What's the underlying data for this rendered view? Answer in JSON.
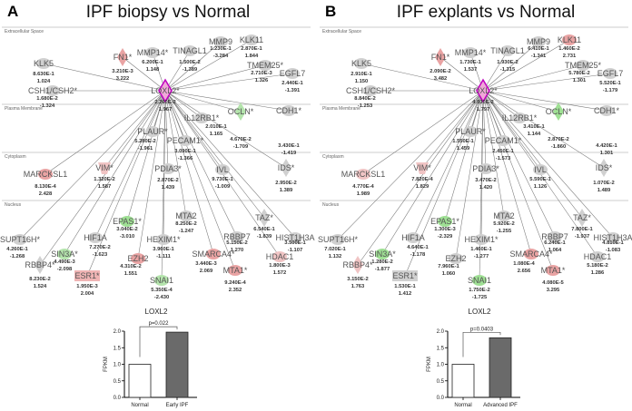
{
  "panels": [
    {
      "letter": "A",
      "title": "IPF biopsy vs Normal",
      "regions": [
        "Extracellular Space",
        "Plasma Membrane",
        "Cytoplasm",
        "Nucleus"
      ],
      "hub": {
        "label": "LOXL2*",
        "p": "2.260E-2",
        "fc": "1.967"
      },
      "nodes": [
        {
          "id": "FN1",
          "label": "FN1*",
          "p": "3.210E-3",
          "fc": "3.222",
          "color": "#e9a3a3",
          "shape": "diamond"
        },
        {
          "id": "MMP14",
          "label": "MMP14*",
          "p": "6.200E-1",
          "fc": "1.148",
          "color": "#d0d0d0",
          "shape": "ellipse"
        },
        {
          "id": "TINAGL1",
          "label": "TINAGL1",
          "p": "1.500E-2",
          "fc": "-1.389",
          "color": "#d0d0d0",
          "shape": "ellipse"
        },
        {
          "id": "MMP9",
          "label": "MMP9",
          "p": "1.230E-1",
          "fc": "-3.284",
          "color": "#d0d0d0",
          "shape": "ellipse"
        },
        {
          "id": "KLK11",
          "label": "KLK11",
          "p": "2.870E-1",
          "fc": "1.844",
          "color": "#d0d0d0",
          "shape": "ellipse"
        },
        {
          "id": "TMEM25",
          "label": "TMEM25*",
          "p": "2.710E-3",
          "fc": "1.326",
          "color": "#d0d0d0",
          "shape": "ellipse"
        },
        {
          "id": "EGFL7",
          "label": "EGFL7",
          "p": "2.440E-1",
          "fc": "-1.391",
          "color": "#d0d0d0",
          "shape": "ellipse"
        },
        {
          "id": "KLK5",
          "label": "KLK5",
          "p": "8.630E-1",
          "fc": "1.024",
          "color": "#d0d0d0",
          "shape": "ellipse"
        },
        {
          "id": "CSH",
          "label": "CSH1/CSH2*",
          "p": "1.680E-2",
          "fc": "-1.324",
          "color": "#d0d0d0",
          "shape": "ellipse"
        },
        {
          "id": "PLAUR",
          "label": "PLAUR*",
          "p": "5.280E-2",
          "fc": "-1.961",
          "color": "#d0d0d0",
          "shape": "ellipse"
        },
        {
          "id": "PECAM",
          "label": "PECAM1*",
          "p": "3.090E-1",
          "fc": "-1.366",
          "color": "#d0d0d0",
          "shape": "ellipse"
        },
        {
          "id": "IL12RB1",
          "label": "IL12RB1*",
          "p": "2.010E-1",
          "fc": "1.165",
          "color": "#d0d0d0",
          "shape": "ellipse"
        },
        {
          "id": "OCLN",
          "label": "OCLN*",
          "p": "4.670E-2",
          "fc": "-1.709",
          "color": "#b4e4ac",
          "shape": "diamond"
        },
        {
          "id": "CDH1",
          "label": "CDH1*",
          "p": "3.430E-1",
          "fc": "-1.419",
          "color": "#d0d0d0",
          "shape": "ellipse"
        },
        {
          "id": "MARCKSL1",
          "label": "MARCKSL1",
          "p": "8.130E-4",
          "fc": "2.428",
          "color": "#e9a3a3",
          "shape": "ellipse"
        },
        {
          "id": "VIM",
          "label": "VIM*",
          "p": "1.320E-2",
          "fc": "1.587",
          "color": "#f0c4c4",
          "shape": "vase"
        },
        {
          "id": "PDIA3",
          "label": "PDIA3*",
          "p": "2.870E-2",
          "fc": "1.439",
          "color": "#d0d0d0",
          "shape": "ellipse"
        },
        {
          "id": "IVL",
          "label": "IVL",
          "p": "9.730E-1",
          "fc": "-1.009",
          "color": "#d0d0d0",
          "shape": "ellipse"
        },
        {
          "id": "IDS",
          "label": "IDS*",
          "p": "2.950E-2",
          "fc": "1.389",
          "color": "#d0d0d0",
          "shape": "diamond"
        },
        {
          "id": "EPAS1",
          "label": "EPAS1*",
          "p": "3.040E-2",
          "fc": "-3.010",
          "color": "#9fe094",
          "shape": "ellipse"
        },
        {
          "id": "MTA2",
          "label": "MTA2",
          "p": "8.250E-2",
          "fc": "-1.247",
          "color": "#d0d0d0",
          "shape": "ellipse"
        },
        {
          "id": "TAZ",
          "label": "TAZ*",
          "p": "6.540E-1",
          "fc": "-1.839",
          "color": "#d0d0d0",
          "shape": "diamond"
        },
        {
          "id": "RBBP7",
          "label": "RBBP7",
          "p": "5.150E-2",
          "fc": "1.270",
          "color": "#d0d0d0",
          "shape": "ellipse"
        },
        {
          "id": "HIST1H3A",
          "label": "HIST1H3A",
          "p": "3.500E-1",
          "fc": "-1.107",
          "color": "#d0d0d0",
          "shape": "ellipse"
        },
        {
          "id": "HDAC1",
          "label": "HDAC1",
          "p": "1.800E-3",
          "fc": "1.572",
          "color": "#f0c4c4",
          "shape": "ellipse"
        },
        {
          "id": "SMARCA4",
          "label": "SMARCA4*",
          "p": "3.440E-3",
          "fc": "2.069",
          "color": "#e9a3a3",
          "shape": "ellipse"
        },
        {
          "id": "MTA1",
          "label": "MTA1*",
          "p": "9.240E-4",
          "fc": "2.352",
          "color": "#e9a3a3",
          "shape": "ellipse"
        },
        {
          "id": "HEXIM1",
          "label": "HEXIM1*",
          "p": "3.960E-1",
          "fc": "-1.111",
          "color": "#d0d0d0",
          "shape": "ellipse"
        },
        {
          "id": "EZH2",
          "label": "EZH2",
          "p": "4.310E-2",
          "fc": "1.551",
          "color": "#e9a3a3",
          "shape": "ellipse"
        },
        {
          "id": "SNAI1",
          "label": "SNAI1",
          "p": "5.350E-4",
          "fc": "-2.430",
          "color": "#b4e4ac",
          "shape": "ellipse"
        },
        {
          "id": "HIF1A",
          "label": "HIF1A",
          "p": "7.270E-2",
          "fc": "-1.623",
          "color": "#d0d0d0",
          "shape": "ellipse"
        },
        {
          "id": "SIN3A",
          "label": "SIN3A*",
          "p": "4.490E-3",
          "fc": "-2.098",
          "color": "#b4e4ac",
          "shape": "ellipse"
        },
        {
          "id": "ESR1",
          "label": "ESR1*",
          "p": "1.950E-3",
          "fc": "2.004",
          "color": "#f0b4b4",
          "shape": "rect"
        },
        {
          "id": "SUPT16H",
          "label": "SUPT16H*",
          "p": "4.260E-1",
          "fc": "-1.268",
          "color": "#d0d0d0",
          "shape": "ellipse"
        },
        {
          "id": "RBBP4",
          "label": "RBBP4*",
          "p": "8.230E-2",
          "fc": "1.524",
          "color": "#d0d0d0",
          "shape": "diamond"
        }
      ],
      "chart": {
        "title": "LOXL2",
        "ylabel": "FPKM",
        "pvalue": "p=0.022",
        "categories": [
          "Normal",
          "Early IPF"
        ],
        "values": [
          1.0,
          1.97
        ],
        "yticks": [
          "0.0",
          "0.5",
          "1.0",
          "1.5",
          "2.0"
        ],
        "ylim": [
          0,
          2.0
        ]
      }
    },
    {
      "letter": "B",
      "title": "IPF explants vs Normal",
      "regions": [
        "Extracellular Space",
        "Plasma Membrane",
        "Cytoplasm",
        "Nucleus"
      ],
      "hub": {
        "label": "LOXL2*",
        "p": "4.030E-2",
        "fc": "1.797"
      },
      "nodes": [
        {
          "id": "FN1",
          "label": "FN1*",
          "p": "2.090E-2",
          "fc": "3.482",
          "color": "#e9a3a3",
          "shape": "diamond"
        },
        {
          "id": "MMP14",
          "label": "MMP14*",
          "p": "1.730E-1",
          "fc": "1.537",
          "color": "#d0d0d0",
          "shape": "ellipse"
        },
        {
          "id": "TINAGL1",
          "label": "TINAGL1",
          "p": "1.930E-2",
          "fc": "-1.315",
          "color": "#d0d0d0",
          "shape": "ellipse"
        },
        {
          "id": "MMP9",
          "label": "MMP9",
          "p": "6.410E-1",
          "fc": "-1.341",
          "color": "#d0d0d0",
          "shape": "ellipse"
        },
        {
          "id": "KLK11",
          "label": "KLK11",
          "p": "1.460E-2",
          "fc": "2.731",
          "color": "#e9a3a3",
          "shape": "ellipse"
        },
        {
          "id": "TMEM25",
          "label": "TMEM25*",
          "p": "5.780E-2",
          "fc": "1.301",
          "color": "#d0d0d0",
          "shape": "ellipse"
        },
        {
          "id": "EGFL7",
          "label": "EGFL7",
          "p": "5.520E-1",
          "fc": "-1.179",
          "color": "#d0d0d0",
          "shape": "ellipse"
        },
        {
          "id": "KLK5",
          "label": "KLK5",
          "p": "2.910E-1",
          "fc": "1.150",
          "color": "#d0d0d0",
          "shape": "ellipse"
        },
        {
          "id": "CSH",
          "label": "CSH1/CSH2*",
          "p": "8.840E-2",
          "fc": "-1.253",
          "color": "#d0d0d0",
          "shape": "ellipse"
        },
        {
          "id": "PLAUR",
          "label": "PLAUR*",
          "p": "1.550E-1",
          "fc": "1.459",
          "color": "#d0d0d0",
          "shape": "ellipse"
        },
        {
          "id": "PECAM",
          "label": "PECAM1*",
          "p": "2.450E-1",
          "fc": "-1.573",
          "color": "#d0d0d0",
          "shape": "ellipse"
        },
        {
          "id": "IL12RB1",
          "label": "IL12RB1*",
          "p": "3.410E-1",
          "fc": "1.144",
          "color": "#d0d0d0",
          "shape": "ellipse"
        },
        {
          "id": "OCLN",
          "label": "OCLN*",
          "p": "2.870E-2",
          "fc": "-1.860",
          "color": "#9fe094",
          "shape": "diamond"
        },
        {
          "id": "CDH1",
          "label": "CDH1*",
          "p": "4.420E-1",
          "fc": "1.301",
          "color": "#d0d0d0",
          "shape": "ellipse"
        },
        {
          "id": "MARCKSL1",
          "label": "MARCKSL1",
          "p": "4.770E-4",
          "fc": "1.989",
          "color": "#f0c4c4",
          "shape": "ellipse"
        },
        {
          "id": "VIM",
          "label": "VIM*",
          "p": "7.820E-4",
          "fc": "1.829",
          "color": "#f0c4c4",
          "shape": "vase"
        },
        {
          "id": "PDIA3",
          "label": "PDIA3*",
          "p": "3.470E-2",
          "fc": "1.420",
          "color": "#d0d0d0",
          "shape": "ellipse"
        },
        {
          "id": "IVL",
          "label": "IVL",
          "p": "5.590E-1",
          "fc": "1.126",
          "color": "#d0d0d0",
          "shape": "ellipse"
        },
        {
          "id": "IDS",
          "label": "IDS*",
          "p": "1.070E-2",
          "fc": "1.489",
          "color": "#d0d0d0",
          "shape": "diamond"
        },
        {
          "id": "EPAS1",
          "label": "EPAS1*",
          "p": "1.300E-3",
          "fc": "-2.329",
          "color": "#9fe094",
          "shape": "ellipse"
        },
        {
          "id": "MTA2",
          "label": "MTA2",
          "p": "5.920E-2",
          "fc": "-1.255",
          "color": "#d0d0d0",
          "shape": "ellipse"
        },
        {
          "id": "TAZ",
          "label": "TAZ*",
          "p": "7.800E-1",
          "fc": "-1.937",
          "color": "#d0d0d0",
          "shape": "diamond"
        },
        {
          "id": "RBBP7",
          "label": "RBBP7",
          "p": "6.240E-1",
          "fc": "1.064",
          "color": "#d0d0d0",
          "shape": "ellipse"
        },
        {
          "id": "HIST1H3A",
          "label": "HIST1H3A",
          "p": "4.810E-1",
          "fc": "-1.083",
          "color": "#d0d0d0",
          "shape": "ellipse"
        },
        {
          "id": "HDAC1",
          "label": "HDAC1",
          "p": "5.180E-2",
          "fc": "1.286",
          "color": "#d0d0d0",
          "shape": "ellipse"
        },
        {
          "id": "SMARCA4",
          "label": "SMARCA4*",
          "p": "1.080E-4",
          "fc": "2.656",
          "color": "#e9a3a3",
          "shape": "ellipse"
        },
        {
          "id": "MTA1",
          "label": "MTA1*",
          "p": "4.080E-5",
          "fc": "3.295",
          "color": "#e9a3a3",
          "shape": "ellipse"
        },
        {
          "id": "HEXIM1",
          "label": "HEXIM1*",
          "p": "1.460E-1",
          "fc": "-1.277",
          "color": "#d0d0d0",
          "shape": "ellipse"
        },
        {
          "id": "EZH2",
          "label": "EZH2",
          "p": "7.960E-1",
          "fc": "1.060",
          "color": "#d0d0d0",
          "shape": "ellipse"
        },
        {
          "id": "SNAI1",
          "label": "SNAI1",
          "p": "1.750E-2",
          "fc": "-1.725",
          "color": "#9fe094",
          "shape": "ellipse"
        },
        {
          "id": "HIF1A",
          "label": "HIF1A",
          "p": "4.640E-1",
          "fc": "-1.178",
          "color": "#d0d0d0",
          "shape": "ellipse"
        },
        {
          "id": "SIN3A",
          "label": "SIN3A*",
          "p": "1.280E-2",
          "fc": "-1.877",
          "color": "#9fe094",
          "shape": "ellipse"
        },
        {
          "id": "ESR1",
          "label": "ESR1*",
          "p": "1.530E-1",
          "fc": "1.412",
          "color": "#d0d0d0",
          "shape": "rect"
        },
        {
          "id": "SUPT16H",
          "label": "SUPT16H*",
          "p": "7.020E-1",
          "fc": "1.132",
          "color": "#d0d0d0",
          "shape": "ellipse"
        },
        {
          "id": "RBBP4",
          "label": "RBBP4*",
          "p": "3.150E-2",
          "fc": "1.763",
          "color": "#f0c4c4",
          "shape": "diamond"
        }
      ],
      "chart": {
        "title": "LOXL2",
        "ylabel": "FPKM",
        "pvalue": "p=0.0403",
        "categories": [
          "Normal",
          "Advanced IPF"
        ],
        "values": [
          1.0,
          1.8
        ],
        "yticks": [
          "0.0",
          "0.5",
          "1.0",
          "1.5",
          "2.0"
        ],
        "ylim": [
          0,
          2.0
        ]
      }
    }
  ],
  "colors": {
    "up": "#e9a3a3",
    "down": "#9fe094",
    "neutral": "#d0d0d0",
    "hub_border": "#c000c0",
    "ipf_bar": "#6a6a6a"
  }
}
